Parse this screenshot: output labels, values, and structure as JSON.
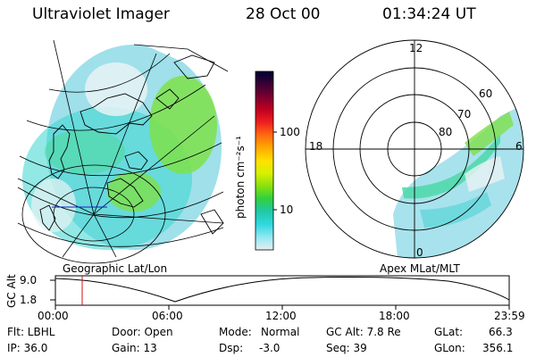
{
  "header": {
    "title": "Ultraviolet Imager",
    "date": "28 Oct 00",
    "time": "01:34:24 UT"
  },
  "colorbar": {
    "unit_label": "photon cm⁻²s⁻¹",
    "ticks": [
      "100",
      "10"
    ],
    "colors": [
      "#000033",
      "#3a0033",
      "#7a0030",
      "#c00020",
      "#ee2020",
      "#ff6a10",
      "#ffaa00",
      "#ffe000",
      "#d8f000",
      "#88e010",
      "#30d040",
      "#20c8a8",
      "#30d8e0",
      "#90e8f0",
      "#e8eef0"
    ]
  },
  "left_map": {
    "caption": "Geographic Lat/Lon"
  },
  "polar_plot": {
    "caption": "Apex MLat/MLT",
    "mlt_labels": {
      "top": "12",
      "left": "18",
      "right": "6",
      "bottom": "0"
    },
    "lat_labels": [
      "60",
      "70",
      "80"
    ]
  },
  "altitude_plot": {
    "ylabel": "GC Alt",
    "y_ticks": [
      "9.0",
      "1.8"
    ],
    "x_ticks": [
      "00:00",
      "06:00",
      "12:00",
      "18:00",
      "23:59"
    ]
  },
  "info": {
    "flt": "Flt: LBHL",
    "door": "Door: Open",
    "mode_label": "Mode:",
    "mode_value": "Normal",
    "gc_alt": "GC Alt: 7.8 Re",
    "glat_label": "GLat:",
    "glat_value": "66.3",
    "ip": "IP: 36.0",
    "gain": "Gain: 13",
    "dsp_label": "Dsp:",
    "dsp_value": "-3.0",
    "seq": "Seq: 39",
    "glon_label": "GLon:",
    "glon_value": "356.1"
  }
}
